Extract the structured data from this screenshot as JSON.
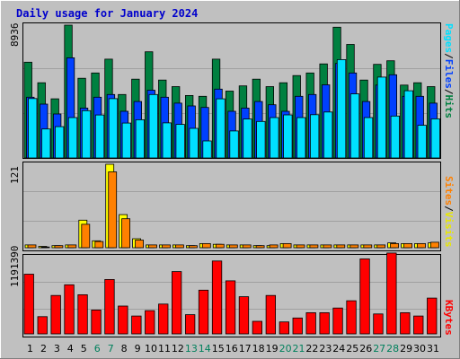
{
  "title": "Daily usage for January 2024",
  "colors": {
    "background": "#c0c0c0",
    "hits": "#008040",
    "files": "#0040ff",
    "pages": "#00e0ff",
    "visits": "#ffff00",
    "sites": "#ff8000",
    "kbytes": "#ff0000",
    "weekday_label": "#000000",
    "weekend_label": "#00805c",
    "sep_slash": "#000000"
  },
  "legend": {
    "top": [
      {
        "text": "Pages",
        "color": "#00e0ff"
      },
      {
        "text": "/",
        "color": "#000000"
      },
      {
        "text": "Files",
        "color": "#0040ff"
      },
      {
        "text": "/",
        "color": "#000000"
      },
      {
        "text": "Hits",
        "color": "#008040"
      }
    ],
    "middle": [
      {
        "text": "Sites",
        "color": "#ff8000"
      },
      {
        "text": "/",
        "color": "#000000"
      },
      {
        "text": "Visits",
        "color": "#e8e800"
      }
    ],
    "bottom": [
      {
        "text": "KBytes",
        "color": "#ff0000"
      }
    ]
  },
  "chart_data": [
    {
      "type": "bar",
      "panel": "hits-files-pages",
      "ymax_label": "8936",
      "ylim": [
        0,
        8936
      ],
      "categories": [
        "1",
        "2",
        "3",
        "4",
        "5",
        "6",
        "7",
        "8",
        "9",
        "10",
        "11",
        "12",
        "13",
        "14",
        "15",
        "16",
        "17",
        "18",
        "19",
        "20",
        "21",
        "22",
        "23",
        "24",
        "25",
        "26",
        "27",
        "28",
        "29",
        "30",
        "31"
      ],
      "weekend": [
        false,
        false,
        false,
        false,
        false,
        true,
        true,
        false,
        false,
        false,
        false,
        false,
        true,
        true,
        false,
        false,
        false,
        false,
        false,
        true,
        true,
        false,
        false,
        false,
        false,
        false,
        true,
        true,
        false,
        false,
        false
      ],
      "series": [
        {
          "name": "Hits",
          "values": [
            6440,
            5060,
            3980,
            8936,
            5360,
            5720,
            6650,
            4270,
            5300,
            7140,
            5240,
            4800,
            4200,
            4150,
            6650,
            4500,
            4850,
            5300,
            4800,
            5060,
            5540,
            5720,
            6330,
            8800,
            7640,
            5240,
            6300,
            6540,
            4900,
            5060,
            4800
          ]
        },
        {
          "name": "Files",
          "values": [
            4090,
            3620,
            2960,
            6740,
            3360,
            4090,
            4270,
            3140,
            3800,
            4560,
            4090,
            3690,
            3500,
            3400,
            4630,
            3140,
            3360,
            3800,
            3580,
            3140,
            4150,
            4270,
            4920,
            6360,
            5720,
            3800,
            4900,
            5600,
            4150,
            4150,
            3690
          ]
        },
        {
          "name": "Pages",
          "values": [
            4000,
            1950,
            2110,
            2720,
            3180,
            2890,
            3990,
            2350,
            2570,
            4270,
            2360,
            2260,
            1990,
            1150,
            3980,
            1820,
            2620,
            2460,
            2720,
            2900,
            2720,
            2910,
            3090,
            6620,
            4310,
            2720,
            5440,
            2820,
            4520,
            2200,
            2630
          ]
        }
      ]
    },
    {
      "type": "bar",
      "panel": "visits-sites",
      "ymax_label": "121",
      "ylim": [
        0,
        121
      ],
      "categories": [
        "1",
        "2",
        "3",
        "4",
        "5",
        "6",
        "7",
        "8",
        "9",
        "10",
        "11",
        "12",
        "13",
        "14",
        "15",
        "16",
        "17",
        "18",
        "19",
        "20",
        "21",
        "22",
        "23",
        "24",
        "25",
        "26",
        "27",
        "28",
        "29",
        "30",
        "31"
      ],
      "series": [
        {
          "name": "Visits",
          "values": [
            4,
            2,
            3,
            4,
            40,
            10,
            121,
            48,
            13,
            4,
            4,
            4,
            3,
            6,
            5,
            4,
            4,
            3,
            3,
            6,
            4,
            4,
            4,
            4,
            4,
            4,
            4,
            7,
            6,
            6,
            7
          ]
        },
        {
          "name": "Sites",
          "values": [
            4,
            1,
            3,
            4,
            34,
            9,
            110,
            42,
            11,
            4,
            4,
            4,
            3,
            6,
            5,
            4,
            4,
            3,
            4,
            6,
            4,
            4,
            4,
            4,
            4,
            4,
            4,
            6,
            6,
            6,
            8
          ]
        }
      ]
    },
    {
      "type": "bar",
      "panel": "kbytes",
      "ymax_label": "1191390",
      "ylim": [
        0,
        1191390
      ],
      "categories": [
        "1",
        "2",
        "3",
        "4",
        "5",
        "6",
        "7",
        "8",
        "9",
        "10",
        "11",
        "12",
        "13",
        "14",
        "15",
        "16",
        "17",
        "18",
        "19",
        "20",
        "21",
        "22",
        "23",
        "24",
        "25",
        "26",
        "27",
        "28",
        "29",
        "30",
        "31"
      ],
      "series": [
        {
          "name": "KBytes",
          "values": [
            900000,
            260000,
            580000,
            740000,
            590000,
            360000,
            820000,
            420000,
            270000,
            350000,
            450000,
            940000,
            290000,
            660000,
            1100000,
            800000,
            560000,
            190000,
            580000,
            180000,
            240000,
            320000,
            320000,
            390000,
            500000,
            1130000,
            300000,
            1220000,
            320000,
            270000,
            540000
          ]
        }
      ]
    }
  ]
}
